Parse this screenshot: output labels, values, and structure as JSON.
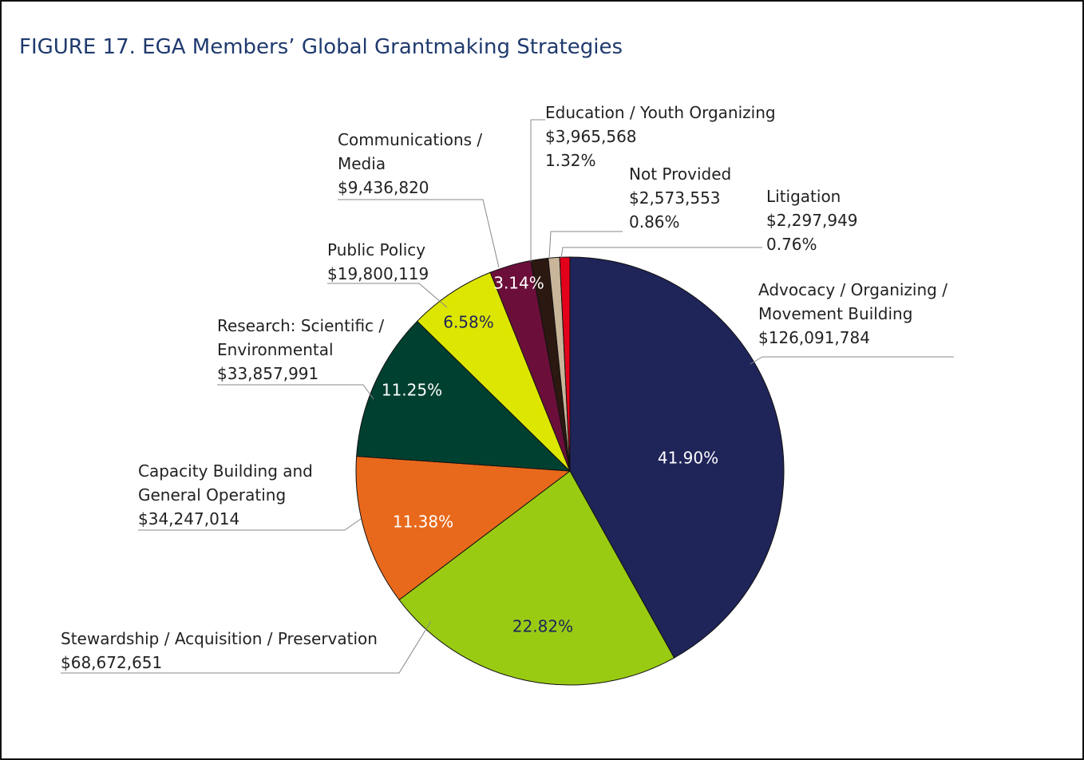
{
  "chart_data": {
    "type": "pie",
    "title": "FIGURE 17. EGA Members’ Global Grantmaking Strategies",
    "categories": [
      "Advocacy / Organizing / Movement Building",
      "Stewardship / Acquisition / Preservation",
      "Capacity Building and General Operating",
      "Research: Scientific / Environmental",
      "Public Policy",
      "Communications / Media",
      "Education / Youth Organizing",
      "Not Provided",
      "Litigation"
    ],
    "values": [
      126091784,
      68672651,
      34247014,
      33857991,
      19800119,
      9436820,
      3965568,
      2573553,
      2297949
    ],
    "value_labels": [
      "$126,091,784",
      "$68,672,651",
      "$34,247,014",
      "$33,857,991",
      "$19,800,119",
      "$9,436,820",
      "$3,965,568",
      "$2,573,553",
      "$2,297,949"
    ],
    "percentages": [
      41.9,
      22.82,
      11.38,
      11.25,
      6.58,
      3.14,
      1.32,
      0.86,
      0.76
    ],
    "percentage_labels": [
      "41.90%",
      "22.82%",
      "11.38%",
      "11.25%",
      "6.58%",
      "3.14%",
      "1.32%",
      "0.86%",
      "0.76%"
    ],
    "colors": [
      "#1f2459",
      "#9acb13",
      "#e8691c",
      "#004030",
      "#dde600",
      "#6b0f3a",
      "#2b1810",
      "#c9b59a",
      "#e3001b"
    ]
  }
}
